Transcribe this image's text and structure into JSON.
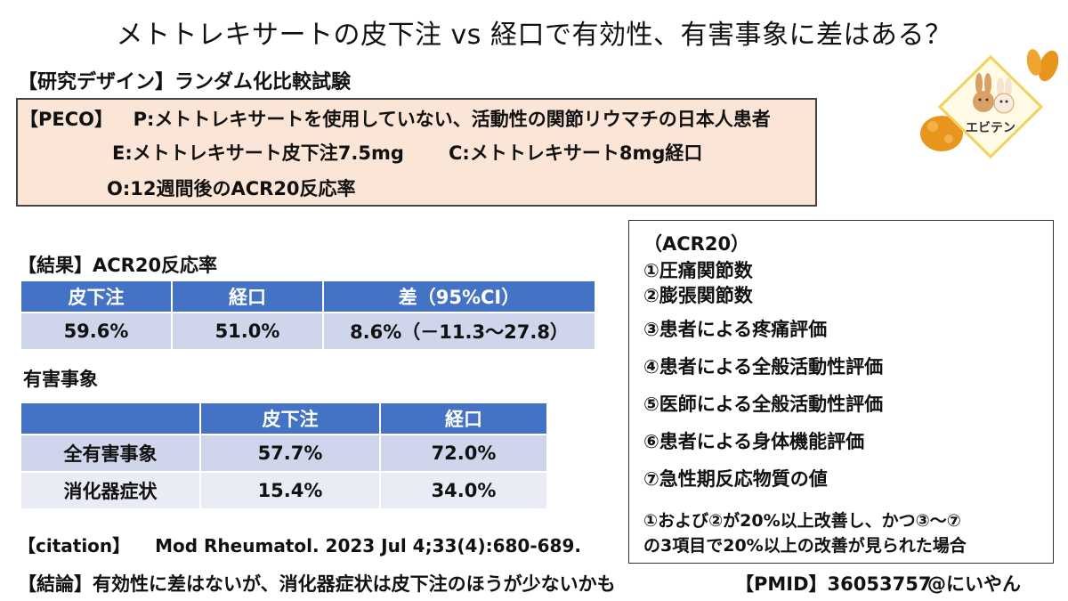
{
  "title": "メトトレキサートの皮下注 vs 経口で有効性、有害事象に差はある？",
  "design": "【研究デザイン】ランダム化比較試験",
  "peco": {
    "tag": "【PECO】",
    "p_label": "P",
    "p_text": "メトトレキサートを使用していない、活動性の関節リウマチの日本人患者",
    "e_label": "E",
    "e_text": "メトトレキサート皮下注7.5mg",
    "c_label": "C",
    "c_text": "メトトレキサート8mg経口",
    "o_label": "O",
    "o_text": "12週間後のACR20反応率"
  },
  "results": {
    "heading": "【結果】ACR20反応率",
    "headers": [
      "皮下注",
      "経口",
      "差（95%CI）"
    ],
    "row": [
      "59.6%",
      "51.0%",
      "8.6%（－11.3～27.8）"
    ]
  },
  "adverse": {
    "heading": "有害事象",
    "headers": [
      "",
      "皮下注",
      "経口"
    ],
    "rows": [
      [
        "全有害事象",
        "57.7%",
        "72.0%"
      ],
      [
        "消化器症状",
        "15.4%",
        "34.0%"
      ]
    ]
  },
  "acr20": {
    "heading": "（ACR20）",
    "items": [
      "①圧痛関節数",
      "②膨張関節数",
      "③患者による疼痛評価",
      "④患者による全般活動性評価",
      "⑤医師による全般活動性評価",
      "⑥患者による身体機能評価",
      "⑦急性期反応物質の値"
    ],
    "note_line1": "①および②が20%以上改善し、かつ③～⑦",
    "note_line2": "の3項目で20%以上の改善が見られた場合"
  },
  "citation": {
    "tag": "【citation】",
    "text": "Mod Rheumatol. 2023 Jul 4;33(4):680-689."
  },
  "conclusion": "【結論】有効性に差はないが、消化器症状は皮下注のほうが少ないかも",
  "pmid": "【PMID】36053757",
  "handle": "@にいやん",
  "logo": {
    "text": "エビテン",
    "colors": {
      "frame": "#f2d25c",
      "bunny": "#d9a066",
      "fried": "#e8951e"
    }
  }
}
